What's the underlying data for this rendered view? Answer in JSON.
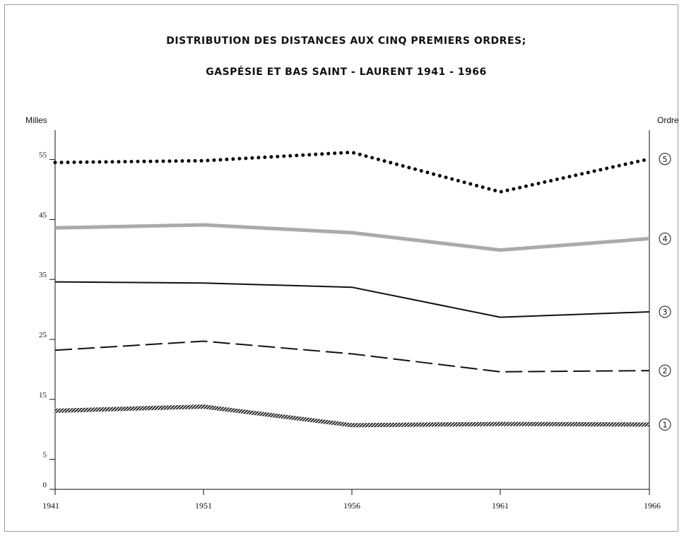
{
  "chart_data": {
    "type": "line",
    "title": "DISTRIBUTION DES DISTANCES AUX CINQ PREMIERS ORDRES;",
    "subtitle": "GASPÉSIE ET BAS SAINT - LAURENT 1941 - 1966",
    "ylabel": "Milles",
    "y2label": "Ordre",
    "x": [
      "1941",
      "1951",
      "1956",
      "1961",
      "1966"
    ],
    "yticks": [
      0,
      5,
      15,
      25,
      35,
      45,
      55
    ],
    "ylim": [
      0,
      60
    ],
    "grid": false,
    "series": [
      {
        "name": "5",
        "style": "dotted",
        "values": [
          54.5,
          54.8,
          56.2,
          49.6,
          55.1
        ]
      },
      {
        "name": "4",
        "style": "stippled",
        "values": [
          43.6,
          44.1,
          42.8,
          39.9,
          41.8
        ]
      },
      {
        "name": "3",
        "style": "solid",
        "values": [
          34.6,
          34.4,
          33.7,
          28.7,
          29.6
        ]
      },
      {
        "name": "2",
        "style": "dashed",
        "values": [
          23.2,
          24.7,
          22.6,
          19.6,
          19.8
        ]
      },
      {
        "name": "1",
        "style": "hatched",
        "values": [
          13.1,
          13.8,
          10.7,
          10.9,
          10.8
        ]
      }
    ],
    "series_labels": [
      "⑤",
      "④",
      "③",
      "②",
      "①"
    ]
  }
}
